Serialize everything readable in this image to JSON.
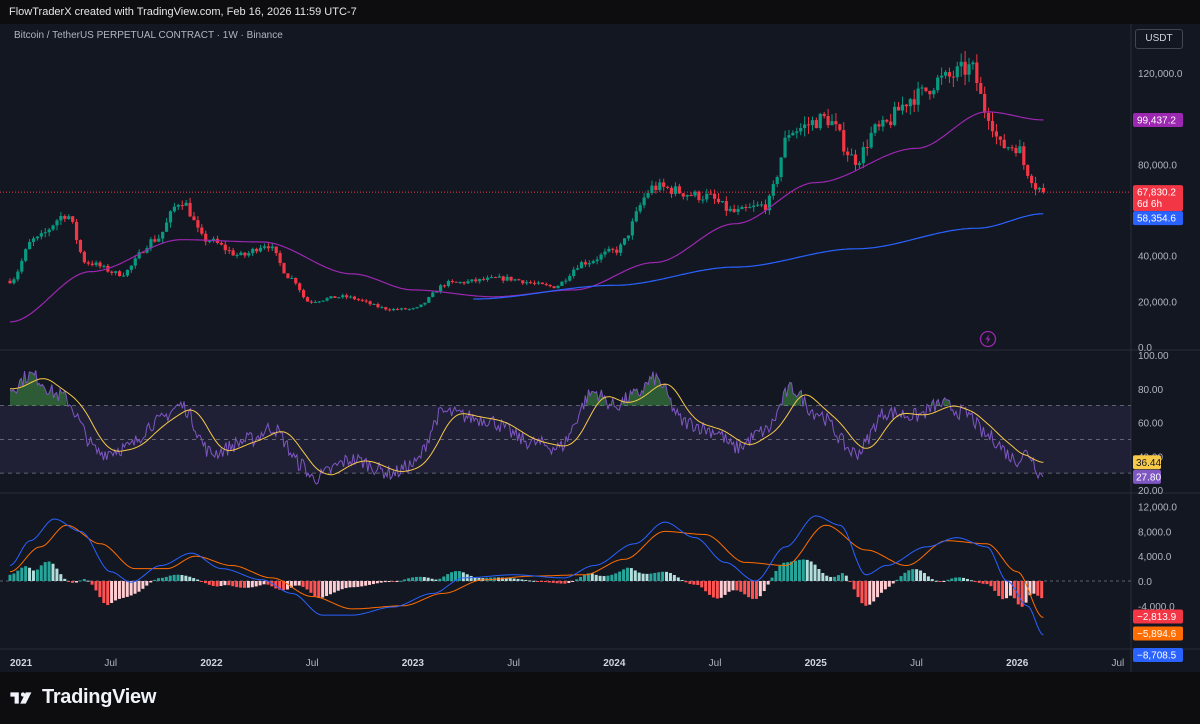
{
  "header": {
    "credit": "FlowTraderX created with TradingView.com, Feb 16, 2026 11:59 UTC-7"
  },
  "symbol": {
    "title": "Bitcoin / TetherUS PERPETUAL CONTRACT · 1W · Binance",
    "currency_button": "USDT"
  },
  "footer": {
    "brand": "TradingView",
    "logo_icon": "tradingview-logo-icon"
  },
  "colors": {
    "up": "#089981",
    "down": "#f23645",
    "ma_purple": "#9c27b0",
    "ma_blue": "#2962ff",
    "rsi_line": "#7e57c2",
    "rsi_ma": "#f7c948",
    "macd_line": "#2962ff",
    "signal_line": "#ff6d00"
  },
  "chart_data": [
    {
      "type": "candlestick",
      "title": "Bitcoin / TetherUS PERPETUAL CONTRACT · 1W · Binance",
      "interval": "1W",
      "x_ticks": [
        "2021",
        "Jul",
        "2022",
        "Jul",
        "2023",
        "Jul",
        "2024",
        "Jul",
        "2025",
        "Jul",
        "2026",
        "Jul"
      ],
      "y_ticks": [
        "120,000.0",
        "80,000.0",
        "40,000.0",
        "20,000.0",
        "0.0"
      ],
      "ylim": [
        0,
        127000
      ],
      "price_anchors": [
        {
          "t": 2021.0,
          "p": 29000
        },
        {
          "t": 2021.12,
          "p": 47000
        },
        {
          "t": 2021.28,
          "p": 58000
        },
        {
          "t": 2021.38,
          "p": 37000
        },
        {
          "t": 2021.55,
          "p": 32000
        },
        {
          "t": 2021.72,
          "p": 47000
        },
        {
          "t": 2021.85,
          "p": 64000
        },
        {
          "t": 2021.97,
          "p": 47000
        },
        {
          "t": 2022.15,
          "p": 40000
        },
        {
          "t": 2022.27,
          "p": 45000
        },
        {
          "t": 2022.4,
          "p": 30000
        },
        {
          "t": 2022.48,
          "p": 20000
        },
        {
          "t": 2022.65,
          "p": 22000
        },
        {
          "t": 2022.9,
          "p": 16500
        },
        {
          "t": 2023.0,
          "p": 16600
        },
        {
          "t": 2023.18,
          "p": 28000
        },
        {
          "t": 2023.45,
          "p": 30000
        },
        {
          "t": 2023.7,
          "p": 26500
        },
        {
          "t": 2023.85,
          "p": 37000
        },
        {
          "t": 2024.0,
          "p": 42000
        },
        {
          "t": 2024.2,
          "p": 70000
        },
        {
          "t": 2024.45,
          "p": 66000
        },
        {
          "t": 2024.6,
          "p": 59000
        },
        {
          "t": 2024.75,
          "p": 62000
        },
        {
          "t": 2024.88,
          "p": 95000
        },
        {
          "t": 2025.05,
          "p": 100000
        },
        {
          "t": 2025.2,
          "p": 82000
        },
        {
          "t": 2025.3,
          "p": 95000
        },
        {
          "t": 2025.5,
          "p": 110000
        },
        {
          "t": 2025.62,
          "p": 117000
        },
        {
          "t": 2025.77,
          "p": 122000
        },
        {
          "t": 2025.85,
          "p": 103000
        },
        {
          "t": 2025.92,
          "p": 88000
        },
        {
          "t": 2026.0,
          "p": 88000
        },
        {
          "t": 2026.05,
          "p": 77000
        },
        {
          "t": 2026.1,
          "p": 70000
        },
        {
          "t": 2026.13,
          "p": 67830
        }
      ],
      "ma_purple_anchors": [
        {
          "t": 2021.0,
          "p": 11000
        },
        {
          "t": 2021.4,
          "p": 33000
        },
        {
          "t": 2021.85,
          "p": 47000
        },
        {
          "t": 2022.25,
          "p": 46000
        },
        {
          "t": 2022.7,
          "p": 32000
        },
        {
          "t": 2023.0,
          "p": 25000
        },
        {
          "t": 2023.4,
          "p": 22000
        },
        {
          "t": 2023.8,
          "p": 25000
        },
        {
          "t": 2024.2,
          "p": 37000
        },
        {
          "t": 2024.6,
          "p": 54000
        },
        {
          "t": 2025.0,
          "p": 72000
        },
        {
          "t": 2025.5,
          "p": 87000
        },
        {
          "t": 2025.85,
          "p": 103000
        },
        {
          "t": 2026.13,
          "p": 99437
        }
      ],
      "ma_blue_anchors": [
        {
          "t": 2023.3,
          "p": 21000
        },
        {
          "t": 2024.0,
          "p": 27000
        },
        {
          "t": 2024.6,
          "p": 35000
        },
        {
          "t": 2025.2,
          "p": 43000
        },
        {
          "t": 2025.8,
          "p": 52000
        },
        {
          "t": 2026.13,
          "p": 58354
        }
      ],
      "last_close": 67830.2,
      "current_price_label": "67,830.2",
      "bar_countdown": "6d 6h",
      "ma_purple_value": "99,437.2",
      "ma_blue_value": "58,354.6",
      "bar_count": 265,
      "seed": 7
    },
    {
      "type": "line",
      "name": "RSI",
      "y_ticks": [
        "100.00",
        "80.00",
        "60.00",
        "40.00",
        "20.00"
      ],
      "ylim": [
        20,
        100
      ],
      "band_levels": [
        70,
        50,
        30
      ],
      "rsi_value": "27.80",
      "rsi_ma_value": "36.44",
      "rsi_anchors": [
        {
          "t": 2021.0,
          "p": 80
        },
        {
          "t": 2021.1,
          "p": 88
        },
        {
          "t": 2021.25,
          "p": 76
        },
        {
          "t": 2021.45,
          "p": 42
        },
        {
          "t": 2021.58,
          "p": 45
        },
        {
          "t": 2021.72,
          "p": 60
        },
        {
          "t": 2021.85,
          "p": 70
        },
        {
          "t": 2022.0,
          "p": 42
        },
        {
          "t": 2022.2,
          "p": 50
        },
        {
          "t": 2022.3,
          "p": 57
        },
        {
          "t": 2022.45,
          "p": 35
        },
        {
          "t": 2022.5,
          "p": 27
        },
        {
          "t": 2022.7,
          "p": 38
        },
        {
          "t": 2022.9,
          "p": 30
        },
        {
          "t": 2023.0,
          "p": 35
        },
        {
          "t": 2023.15,
          "p": 66
        },
        {
          "t": 2023.35,
          "p": 62
        },
        {
          "t": 2023.6,
          "p": 48
        },
        {
          "t": 2023.72,
          "p": 45
        },
        {
          "t": 2023.9,
          "p": 78
        },
        {
          "t": 2024.0,
          "p": 70
        },
        {
          "t": 2024.1,
          "p": 76
        },
        {
          "t": 2024.2,
          "p": 86
        },
        {
          "t": 2024.35,
          "p": 60
        },
        {
          "t": 2024.5,
          "p": 55
        },
        {
          "t": 2024.6,
          "p": 45
        },
        {
          "t": 2024.75,
          "p": 55
        },
        {
          "t": 2024.88,
          "p": 80
        },
        {
          "t": 2025.0,
          "p": 66
        },
        {
          "t": 2025.2,
          "p": 42
        },
        {
          "t": 2025.35,
          "p": 66
        },
        {
          "t": 2025.5,
          "p": 64
        },
        {
          "t": 2025.62,
          "p": 71
        },
        {
          "t": 2025.75,
          "p": 65
        },
        {
          "t": 2025.85,
          "p": 52
        },
        {
          "t": 2026.0,
          "p": 38
        },
        {
          "t": 2026.05,
          "p": 42
        },
        {
          "t": 2026.13,
          "p": 27.8
        }
      ]
    },
    {
      "type": "macd",
      "name": "MACD",
      "y_ticks": [
        "12,000.0",
        "8,000.0",
        "4,000.0",
        "0.0",
        "-4,000.0",
        "-8,000.0"
      ],
      "ylim": [
        -11000,
        12500
      ],
      "histogram_value": "−2,813.9",
      "signal_value": "−5,894.6",
      "macd_value": "−8,708.5",
      "macd_anchors": [
        {
          "t": 2021.0,
          "p": 2500
        },
        {
          "t": 2021.1,
          "p": 6500
        },
        {
          "t": 2021.22,
          "p": 10000
        },
        {
          "t": 2021.35,
          "p": 8000
        },
        {
          "t": 2021.5,
          "p": 1500
        },
        {
          "t": 2021.6,
          "p": -200
        },
        {
          "t": 2021.75,
          "p": 2500
        },
        {
          "t": 2021.9,
          "p": 4500
        },
        {
          "t": 2022.05,
          "p": 2000
        },
        {
          "t": 2022.25,
          "p": 200
        },
        {
          "t": 2022.4,
          "p": -2000
        },
        {
          "t": 2022.55,
          "p": -5500
        },
        {
          "t": 2022.7,
          "p": -5500
        },
        {
          "t": 2022.9,
          "p": -4200
        },
        {
          "t": 2023.1,
          "p": -2000
        },
        {
          "t": 2023.25,
          "p": 500
        },
        {
          "t": 2023.5,
          "p": 1000
        },
        {
          "t": 2023.75,
          "p": 500
        },
        {
          "t": 2023.9,
          "p": 2500
        },
        {
          "t": 2024.1,
          "p": 6000
        },
        {
          "t": 2024.25,
          "p": 9500
        },
        {
          "t": 2024.4,
          "p": 7000
        },
        {
          "t": 2024.55,
          "p": 3000
        },
        {
          "t": 2024.7,
          "p": 0
        },
        {
          "t": 2024.85,
          "p": 5500
        },
        {
          "t": 2025.0,
          "p": 10500
        },
        {
          "t": 2025.12,
          "p": 9000
        },
        {
          "t": 2025.25,
          "p": 1000
        },
        {
          "t": 2025.35,
          "p": 2500
        },
        {
          "t": 2025.55,
          "p": 5500
        },
        {
          "t": 2025.7,
          "p": 7000
        },
        {
          "t": 2025.85,
          "p": 5500
        },
        {
          "t": 2025.95,
          "p": 0
        },
        {
          "t": 2026.05,
          "p": -4000
        },
        {
          "t": 2026.13,
          "p": -8708.5
        }
      ],
      "signal_anchors": [
        {
          "t": 2021.0,
          "p": 1500
        },
        {
          "t": 2021.15,
          "p": 5500
        },
        {
          "t": 2021.28,
          "p": 9000
        },
        {
          "t": 2021.45,
          "p": 6000
        },
        {
          "t": 2021.62,
          "p": 2000
        },
        {
          "t": 2021.78,
          "p": 2000
        },
        {
          "t": 2021.92,
          "p": 4000
        },
        {
          "t": 2022.1,
          "p": 2500
        },
        {
          "t": 2022.3,
          "p": 500
        },
        {
          "t": 2022.5,
          "p": -2500
        },
        {
          "t": 2022.7,
          "p": -4500
        },
        {
          "t": 2022.95,
          "p": -4000
        },
        {
          "t": 2023.15,
          "p": -2000
        },
        {
          "t": 2023.35,
          "p": 200
        },
        {
          "t": 2023.6,
          "p": 800
        },
        {
          "t": 2023.85,
          "p": 1000
        },
        {
          "t": 2024.05,
          "p": 3500
        },
        {
          "t": 2024.25,
          "p": 8000
        },
        {
          "t": 2024.45,
          "p": 7500
        },
        {
          "t": 2024.65,
          "p": 3000
        },
        {
          "t": 2024.85,
          "p": 2500
        },
        {
          "t": 2025.05,
          "p": 9000
        },
        {
          "t": 2025.25,
          "p": 5000
        },
        {
          "t": 2025.45,
          "p": 2500
        },
        {
          "t": 2025.65,
          "p": 6500
        },
        {
          "t": 2025.85,
          "p": 6000
        },
        {
          "t": 2026.0,
          "p": 1500
        },
        {
          "t": 2026.13,
          "p": -5894.6
        }
      ]
    }
  ]
}
